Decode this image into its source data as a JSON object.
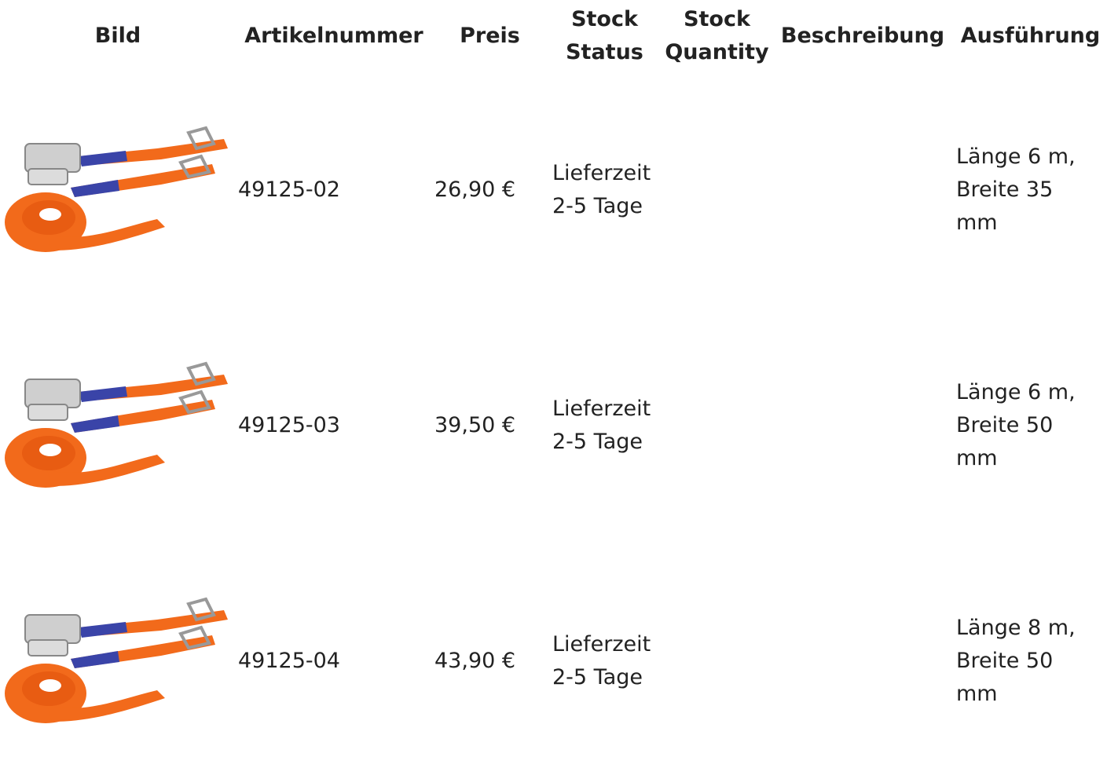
{
  "table": {
    "headers": [
      "Bild",
      "Artikelnummer",
      "Preis",
      "Stock Status",
      "Stock Quantity",
      "Beschreibung",
      "Ausführung"
    ],
    "rows": [
      {
        "artikelnummer": "49125-02",
        "preis": "26,90 €",
        "stock_status": "Lieferzeit 2-5 Tage",
        "ausfuehrung": "Länge 6 m, Breite 35 mm"
      },
      {
        "artikelnummer": "49125-03",
        "preis": "39,50 €",
        "stock_status": "Lieferzeit 2-5 Tage",
        "ausfuehrung": "Länge 6 m, Breite 50 mm"
      },
      {
        "artikelnummer": "49125-04",
        "preis": "43,90 €",
        "stock_status": "Lieferzeit 2-5 Tage",
        "ausfuehrung": "Länge 8 m, Breite 50 mm"
      }
    ]
  }
}
